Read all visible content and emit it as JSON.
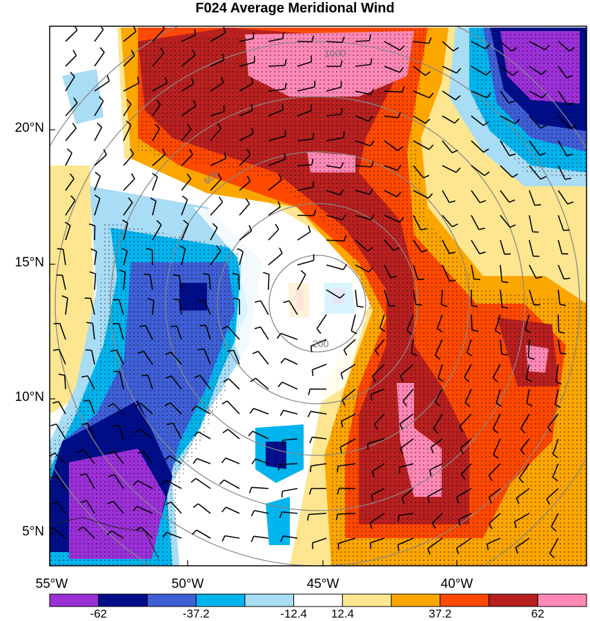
{
  "title": "F024 Average Meridional Wind",
  "lat_labels": [
    "20°N",
    "15°N",
    "10°N",
    "5°N"
  ],
  "lon_labels": [
    "55°W",
    "50°W",
    "45°W",
    "40°W"
  ],
  "range_ring_labels": [
    "200",
    "600",
    "1000"
  ],
  "colorbar": {
    "colors": [
      "#9b30d8",
      "#000e8a",
      "#3f5fd6",
      "#00b4ee",
      "#a9dcf5",
      "#ffffff",
      "#fde68f",
      "#fca600",
      "#ff4800",
      "#b82020",
      "#ff88b4"
    ],
    "tick_labels": [
      "-62",
      "-37.2",
      "-12.4",
      "12.4",
      "37.2",
      "62"
    ]
  }
}
